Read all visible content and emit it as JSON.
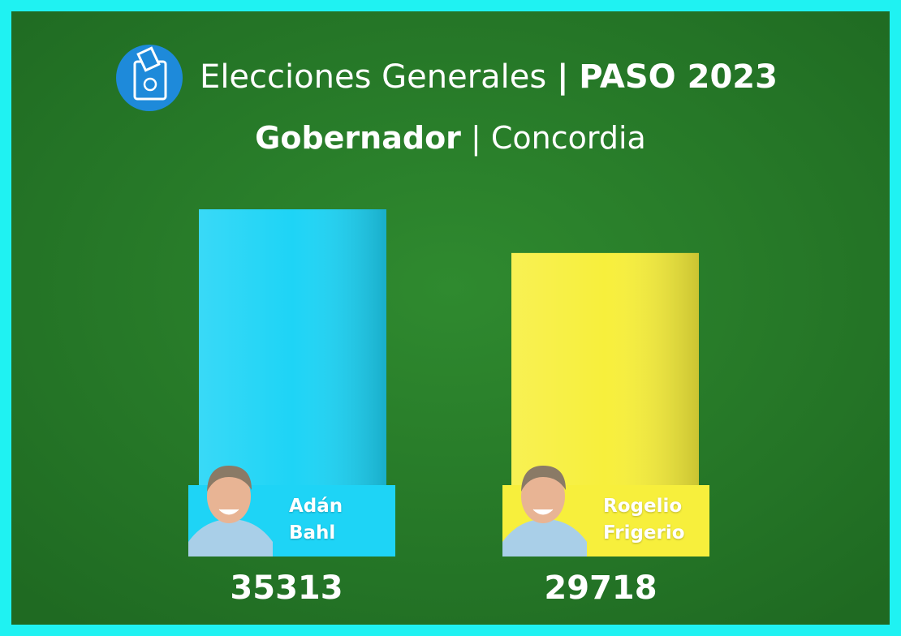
{
  "chart_data": {
    "type": "bar",
    "title": {
      "main": "Elecciones Generales",
      "separator": "|",
      "highlight": "PASO 2023"
    },
    "subtitle": {
      "highlight": "Gobernador",
      "rest": "| Concordia"
    },
    "categories": [
      "Adán Bahl",
      "Rogelio Frigerio"
    ],
    "values": [
      35313,
      29718
    ],
    "colors": [
      "#1ed4f6",
      "#f7ef3c"
    ]
  }
}
